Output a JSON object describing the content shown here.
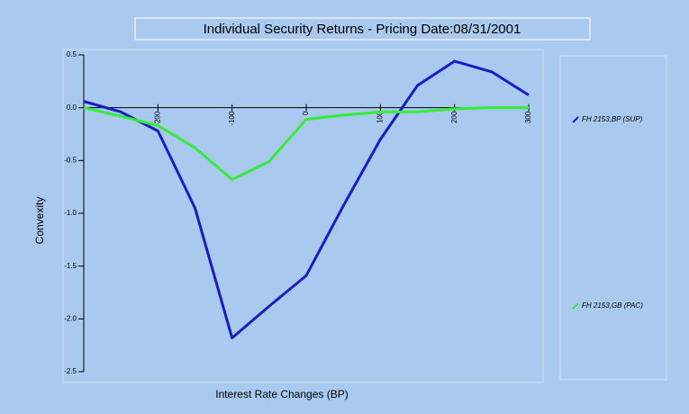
{
  "chart_data": {
    "type": "line",
    "title": "Individual Security Returns - Pricing Date:08/31/2001",
    "x_label": "Interest Rate Changes (BP)",
    "y_label": "Convexity",
    "x": [
      -300,
      -250,
      -200,
      -150,
      -100,
      -50,
      0,
      50,
      100,
      150,
      200,
      250,
      300
    ],
    "series": [
      {
        "name": "FH 2153,BP (SUP)",
        "color": "#1a1ac8",
        "values": [
          0.06,
          -0.04,
          -0.22,
          -0.95,
          -2.18,
          -1.88,
          -1.59,
          -0.93,
          -0.3,
          0.21,
          0.44,
          0.34,
          0.12
        ]
      },
      {
        "name": "FH 2153,GB (PAC)",
        "color": "#33ee33",
        "values": [
          0.0,
          -0.08,
          -0.17,
          -0.38,
          -0.68,
          -0.51,
          -0.11,
          -0.07,
          -0.04,
          -0.04,
          -0.01,
          0.0,
          0.0
        ]
      }
    ],
    "xlim": [
      -300,
      300
    ],
    "xticks": [
      -200,
      -100,
      0,
      100,
      200,
      300
    ],
    "ylim": [
      -2.5,
      0.5
    ],
    "yticks": [
      {
        "value": 0.5,
        "label": "0.5"
      },
      {
        "value": 0.0,
        "label": "0.0"
      },
      {
        "value": -0.5,
        "label": "-0.5"
      },
      {
        "value": -1.0,
        "label": "-1.0"
      },
      {
        "value": -1.5,
        "label": "-1.5"
      },
      {
        "value": -2.0,
        "label": "-2.0"
      },
      {
        "value": -2.5,
        "label": "-2.5"
      }
    ]
  }
}
